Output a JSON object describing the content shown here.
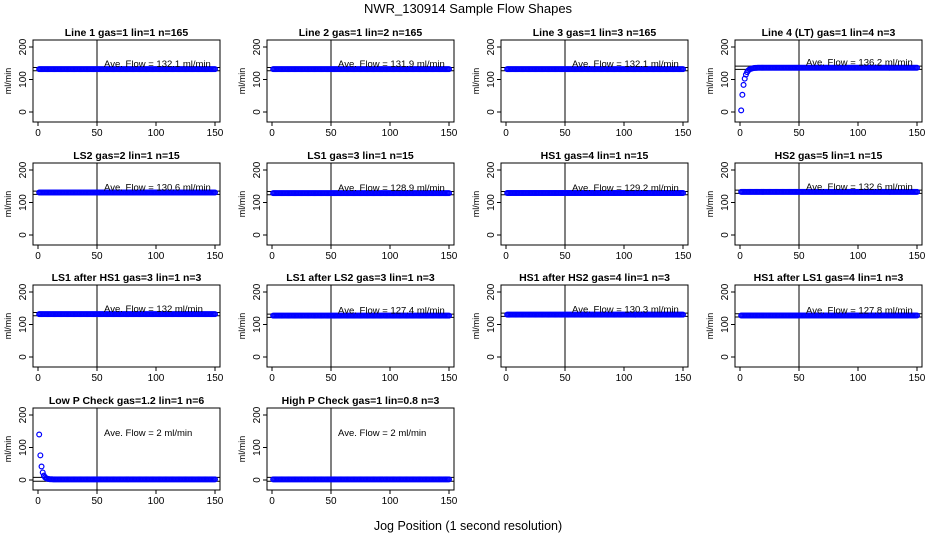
{
  "figure": {
    "title": "NWR_130914  Sample Flow Shapes",
    "xlabel": "Jog Position (1 second resolution)"
  },
  "colors": {
    "points": "#0000ff",
    "lines": "#000000",
    "background": "#ffffff"
  },
  "chart_data": [
    {
      "type": "scatter",
      "title": "Line 1 gas=1 lin=1 n=165",
      "ylabel": "ml/min",
      "xlim": [
        0,
        150
      ],
      "ylim": [
        0,
        200
      ],
      "xticks": [
        0,
        50,
        100,
        150
      ],
      "yticks": [
        0,
        100,
        200
      ],
      "vline": 50,
      "hlines": [
        127,
        137
      ],
      "annotation": "Ave. Flow =  132.1  ml/min",
      "shape": "flat",
      "level": 132.1,
      "x": [
        1,
        150
      ]
    },
    {
      "type": "scatter",
      "title": "Line 2 gas=1 lin=2 n=165",
      "ylabel": "ml/min",
      "xlim": [
        0,
        150
      ],
      "ylim": [
        0,
        200
      ],
      "xticks": [
        0,
        50,
        100,
        150
      ],
      "yticks": [
        0,
        100,
        200
      ],
      "vline": 50,
      "hlines": [
        127,
        137
      ],
      "annotation": "Ave. Flow =  131.9  ml/min",
      "shape": "flat",
      "level": 131.9,
      "x": [
        1,
        150
      ]
    },
    {
      "type": "scatter",
      "title": "Line 3 gas=1 lin=3 n=165",
      "ylabel": "ml/min",
      "xlim": [
        0,
        150
      ],
      "ylim": [
        0,
        200
      ],
      "xticks": [
        0,
        50,
        100,
        150
      ],
      "yticks": [
        0,
        100,
        200
      ],
      "vline": 50,
      "hlines": [
        127,
        137
      ],
      "annotation": "Ave. Flow =  132.1  ml/min",
      "shape": "flat",
      "level": 132.1,
      "x": [
        1,
        150
      ]
    },
    {
      "type": "scatter",
      "title": "Line 4 (LT) gas=1 lin=4 n=3",
      "ylabel": "ml/min",
      "xlim": [
        0,
        150
      ],
      "ylim": [
        0,
        200
      ],
      "xticks": [
        0,
        50,
        100,
        150
      ],
      "yticks": [
        0,
        100,
        200
      ],
      "vline": 50,
      "hlines": [
        131,
        141
      ],
      "annotation": "Ave. Flow =  136.2  ml/min",
      "shape": "rise",
      "level": 136.2,
      "x": [
        1,
        150
      ]
    },
    {
      "type": "scatter",
      "title": "LS2 gas=2 lin=1 n=15",
      "ylabel": "ml/min",
      "xlim": [
        0,
        150
      ],
      "ylim": [
        0,
        200
      ],
      "xticks": [
        0,
        50,
        100,
        150
      ],
      "yticks": [
        0,
        100,
        200
      ],
      "vline": 50,
      "hlines": [
        125,
        135
      ],
      "annotation": "Ave. Flow =  130.6  ml/min",
      "shape": "flat",
      "level": 130.6,
      "x": [
        1,
        150
      ]
    },
    {
      "type": "scatter",
      "title": "LS1 gas=3 lin=1 n=15",
      "ylabel": "ml/min",
      "xlim": [
        0,
        150
      ],
      "ylim": [
        0,
        200
      ],
      "xticks": [
        0,
        50,
        100,
        150
      ],
      "yticks": [
        0,
        100,
        200
      ],
      "vline": 50,
      "hlines": [
        124,
        134
      ],
      "annotation": "Ave. Flow =  128.9  ml/min",
      "shape": "flat",
      "level": 128.9,
      "x": [
        1,
        150
      ]
    },
    {
      "type": "scatter",
      "title": "HS1 gas=4 lin=1 n=15",
      "ylabel": "ml/min",
      "xlim": [
        0,
        150
      ],
      "ylim": [
        0,
        200
      ],
      "xticks": [
        0,
        50,
        100,
        150
      ],
      "yticks": [
        0,
        100,
        200
      ],
      "vline": 50,
      "hlines": [
        124,
        134
      ],
      "annotation": "Ave. Flow =  129.2  ml/min",
      "shape": "flat",
      "level": 129.2,
      "x": [
        1,
        150
      ]
    },
    {
      "type": "scatter",
      "title": "HS2 gas=5 lin=1 n=15",
      "ylabel": "ml/min",
      "xlim": [
        0,
        150
      ],
      "ylim": [
        0,
        200
      ],
      "xticks": [
        0,
        50,
        100,
        150
      ],
      "yticks": [
        0,
        100,
        200
      ],
      "vline": 50,
      "hlines": [
        128,
        138
      ],
      "annotation": "Ave. Flow =  132.6  ml/min",
      "shape": "flat",
      "level": 132.6,
      "x": [
        1,
        150
      ]
    },
    {
      "type": "scatter",
      "title": "LS1 after HS1 gas=3 lin=1 n=3",
      "ylabel": "ml/min",
      "xlim": [
        0,
        150
      ],
      "ylim": [
        0,
        200
      ],
      "xticks": [
        0,
        50,
        100,
        150
      ],
      "yticks": [
        0,
        100,
        200
      ],
      "vline": 50,
      "hlines": [
        127,
        137
      ],
      "annotation": "Ave. Flow =  132  ml/min",
      "shape": "flat",
      "level": 132,
      "x": [
        1,
        150
      ]
    },
    {
      "type": "scatter",
      "title": "LS1 after LS2 gas=3 lin=1 n=3",
      "ylabel": "ml/min",
      "xlim": [
        0,
        150
      ],
      "ylim": [
        0,
        200
      ],
      "xticks": [
        0,
        50,
        100,
        150
      ],
      "yticks": [
        0,
        100,
        200
      ],
      "vline": 50,
      "hlines": [
        122,
        132
      ],
      "annotation": "Ave. Flow =  127.4  ml/min",
      "shape": "flat",
      "level": 127.4,
      "x": [
        1,
        150
      ]
    },
    {
      "type": "scatter",
      "title": "HS1 after HS2 gas=4 lin=1 n=3",
      "ylabel": "ml/min",
      "xlim": [
        0,
        150
      ],
      "ylim": [
        0,
        200
      ],
      "xticks": [
        0,
        50,
        100,
        150
      ],
      "yticks": [
        0,
        100,
        200
      ],
      "vline": 50,
      "hlines": [
        125,
        135
      ],
      "annotation": "Ave. Flow =  130.3  ml/min",
      "shape": "flat",
      "level": 130.3,
      "x": [
        1,
        150
      ]
    },
    {
      "type": "scatter",
      "title": "HS1 after LS1 gas=4 lin=1 n=3",
      "ylabel": "ml/min",
      "xlim": [
        0,
        150
      ],
      "ylim": [
        0,
        200
      ],
      "xticks": [
        0,
        50,
        100,
        150
      ],
      "yticks": [
        0,
        100,
        200
      ],
      "vline": 50,
      "hlines": [
        123,
        133
      ],
      "annotation": "Ave. Flow =  127.8  ml/min",
      "shape": "flat",
      "level": 127.8,
      "x": [
        1,
        150
      ]
    },
    {
      "type": "scatter",
      "title": "Low P Check gas=1.2 lin=1 n=6",
      "ylabel": "ml/min",
      "xlim": [
        0,
        150
      ],
      "ylim": [
        0,
        200
      ],
      "xticks": [
        0,
        50,
        100,
        150
      ],
      "yticks": [
        0,
        100,
        200
      ],
      "vline": 50,
      "hlines": [
        -4,
        8
      ],
      "annotation": "Ave. Flow =  2  ml/min",
      "shape": "decay",
      "level": 2,
      "x": [
        1,
        150
      ]
    },
    {
      "type": "scatter",
      "title": "High P Check gas=1 lin=0.8 n=3",
      "ylabel": "ml/min",
      "xlim": [
        0,
        150
      ],
      "ylim": [
        0,
        200
      ],
      "xticks": [
        0,
        50,
        100,
        150
      ],
      "yticks": [
        0,
        100,
        200
      ],
      "vline": 50,
      "hlines": [
        -4,
        8
      ],
      "annotation": "Ave. Flow =  2  ml/min",
      "shape": "flat",
      "level": 2,
      "x": [
        1,
        150
      ]
    }
  ]
}
